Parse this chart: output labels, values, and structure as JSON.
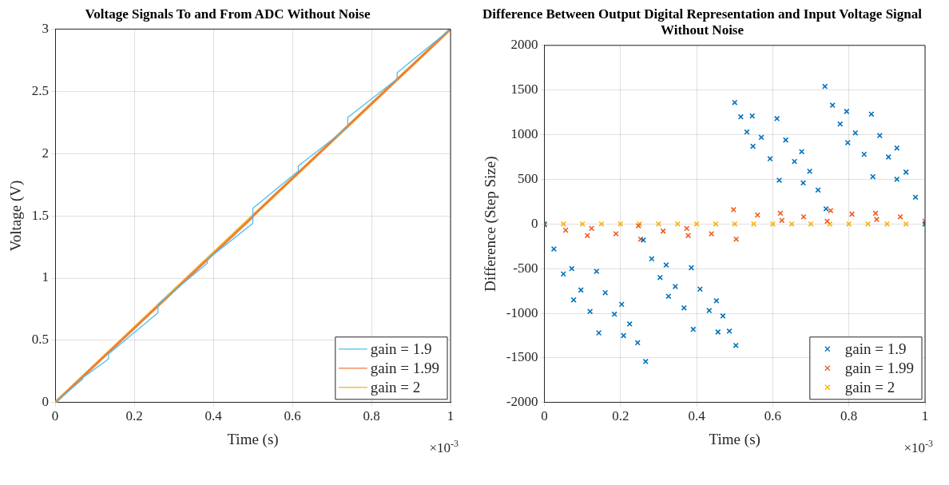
{
  "chart_data": [
    {
      "type": "line",
      "title": "Voltage Signals To and From ADC Without Noise",
      "xlabel": "Time (s)",
      "ylabel": "Voltage (V)",
      "annotations": [
        "×10$^{-3}$"
      ],
      "xlim": [
        0,
        1
      ],
      "xticks": [
        0,
        0.2,
        0.4,
        0.6,
        0.8,
        1
      ],
      "ylim": [
        0,
        3
      ],
      "yticks": [
        0,
        0.5,
        1,
        1.5,
        2,
        2.5,
        3
      ],
      "grid": true,
      "legend": "bottom right",
      "series": [
        {
          "name": "gain = 1.9",
          "color": "#4dbeee",
          "x": [
            0,
            0.07,
            0.07,
            0.135,
            0.135,
            0.26,
            0.26,
            0.385,
            0.385,
            0.5,
            0.5,
            0.615,
            0.615,
            0.74,
            0.74,
            0.865,
            0.865,
            1
          ],
          "values": [
            0,
            0.19,
            0.2,
            0.35,
            0.39,
            0.72,
            0.79,
            1.12,
            1.15,
            1.44,
            1.56,
            1.86,
            1.9,
            2.21,
            2.29,
            2.6,
            2.65,
            3
          ]
        },
        {
          "name": "gain = 1.99",
          "color": "#f07a3e",
          "x": [
            0,
            0.5,
            0.5,
            1
          ],
          "values": [
            0,
            1.49,
            1.5,
            3
          ]
        },
        {
          "name": "gain = 2",
          "color": "#edb120",
          "x": [
            0,
            1
          ],
          "values": [
            0,
            3
          ]
        }
      ]
    },
    {
      "type": "scatter",
      "title": "Difference Between Output Digital Representation and Input Voltage Signal Without Noise",
      "xlabel": "Time (s)",
      "ylabel": "Difference (Step Size)",
      "annotations": [
        "×10$^{-3}$"
      ],
      "xlim": [
        0,
        1
      ],
      "xticks": [
        0,
        0.2,
        0.4,
        0.6,
        0.8,
        1
      ],
      "ylim": [
        -2000,
        2000
      ],
      "yticks": [
        -2000,
        -1500,
        -1000,
        -500,
        0,
        500,
        1000,
        1500,
        2000
      ],
      "grid": true,
      "legend": "bottom right",
      "marker": "cross",
      "series": [
        {
          "name": "gain = 1.9",
          "color": "#0072bd",
          "x": [
            0,
            0.025,
            0.05,
            0.077,
            0.072,
            0.096,
            0.12,
            0.143,
            0.137,
            0.16,
            0.184,
            0.208,
            0.203,
            0.224,
            0.245,
            0.266,
            0.26,
            0.282,
            0.304,
            0.326,
            0.32,
            0.344,
            0.367,
            0.391,
            0.386,
            0.409,
            0.433,
            0.456,
            0.452,
            0.469,
            0.486,
            0.503,
            0.5,
            0.516,
            0.532,
            0.548,
            0.546,
            0.57,
            0.593,
            0.617,
            0.611,
            0.634,
            0.657,
            0.68,
            0.676,
            0.697,
            0.719,
            0.74,
            0.737,
            0.757,
            0.777,
            0.797,
            0.794,
            0.817,
            0.84,
            0.863,
            0.859,
            0.881,
            0.904,
            0.926,
            0.926,
            0.95,
            0.975,
            1
          ],
          "values": [
            0,
            -280,
            -560,
            -850,
            -500,
            -740,
            -980,
            -1220,
            -530,
            -770,
            -1010,
            -1250,
            -900,
            -1120,
            -1330,
            -1540,
            -180,
            -390,
            -600,
            -810,
            -460,
            -700,
            -940,
            -1180,
            -490,
            -730,
            -970,
            -1210,
            -860,
            -1030,
            -1200,
            -1360,
            1360,
            1200,
            1030,
            870,
            1210,
            970,
            730,
            490,
            1180,
            940,
            700,
            460,
            810,
            590,
            380,
            170,
            1540,
            1330,
            1120,
            910,
            1260,
            1020,
            780,
            530,
            1230,
            990,
            750,
            500,
            850,
            580,
            300,
            0
          ]
        },
        {
          "name": "gain = 1.99",
          "color": "#f05a22",
          "x": [
            0,
            0.056,
            0.113,
            0.124,
            0.188,
            0.253,
            0.247,
            0.312,
            0.378,
            0.374,
            0.439,
            0.504,
            0.497,
            0.56,
            0.624,
            0.62,
            0.681,
            0.743,
            0.752,
            0.808,
            0.873,
            0.87,
            0.935,
            1
          ],
          "values": [
            -10,
            -70,
            -130,
            -50,
            -110,
            -170,
            -20,
            -80,
            -130,
            -50,
            -110,
            -170,
            160,
            100,
            40,
            120,
            80,
            30,
            150,
            110,
            50,
            120,
            80,
            30
          ]
        },
        {
          "name": "gain = 2",
          "color": "#ffb000",
          "x": [
            0,
            0.05,
            0.1,
            0.15,
            0.2,
            0.25,
            0.3,
            0.35,
            0.4,
            0.45,
            0.5,
            0.55,
            0.6,
            0.65,
            0.7,
            0.75,
            0.8,
            0.85,
            0.9,
            0.95,
            1
          ],
          "values": [
            0,
            0,
            0,
            0,
            0,
            0,
            0,
            0,
            0,
            0,
            0,
            0,
            0,
            0,
            0,
            0,
            0,
            0,
            0,
            0,
            0
          ]
        }
      ]
    }
  ]
}
